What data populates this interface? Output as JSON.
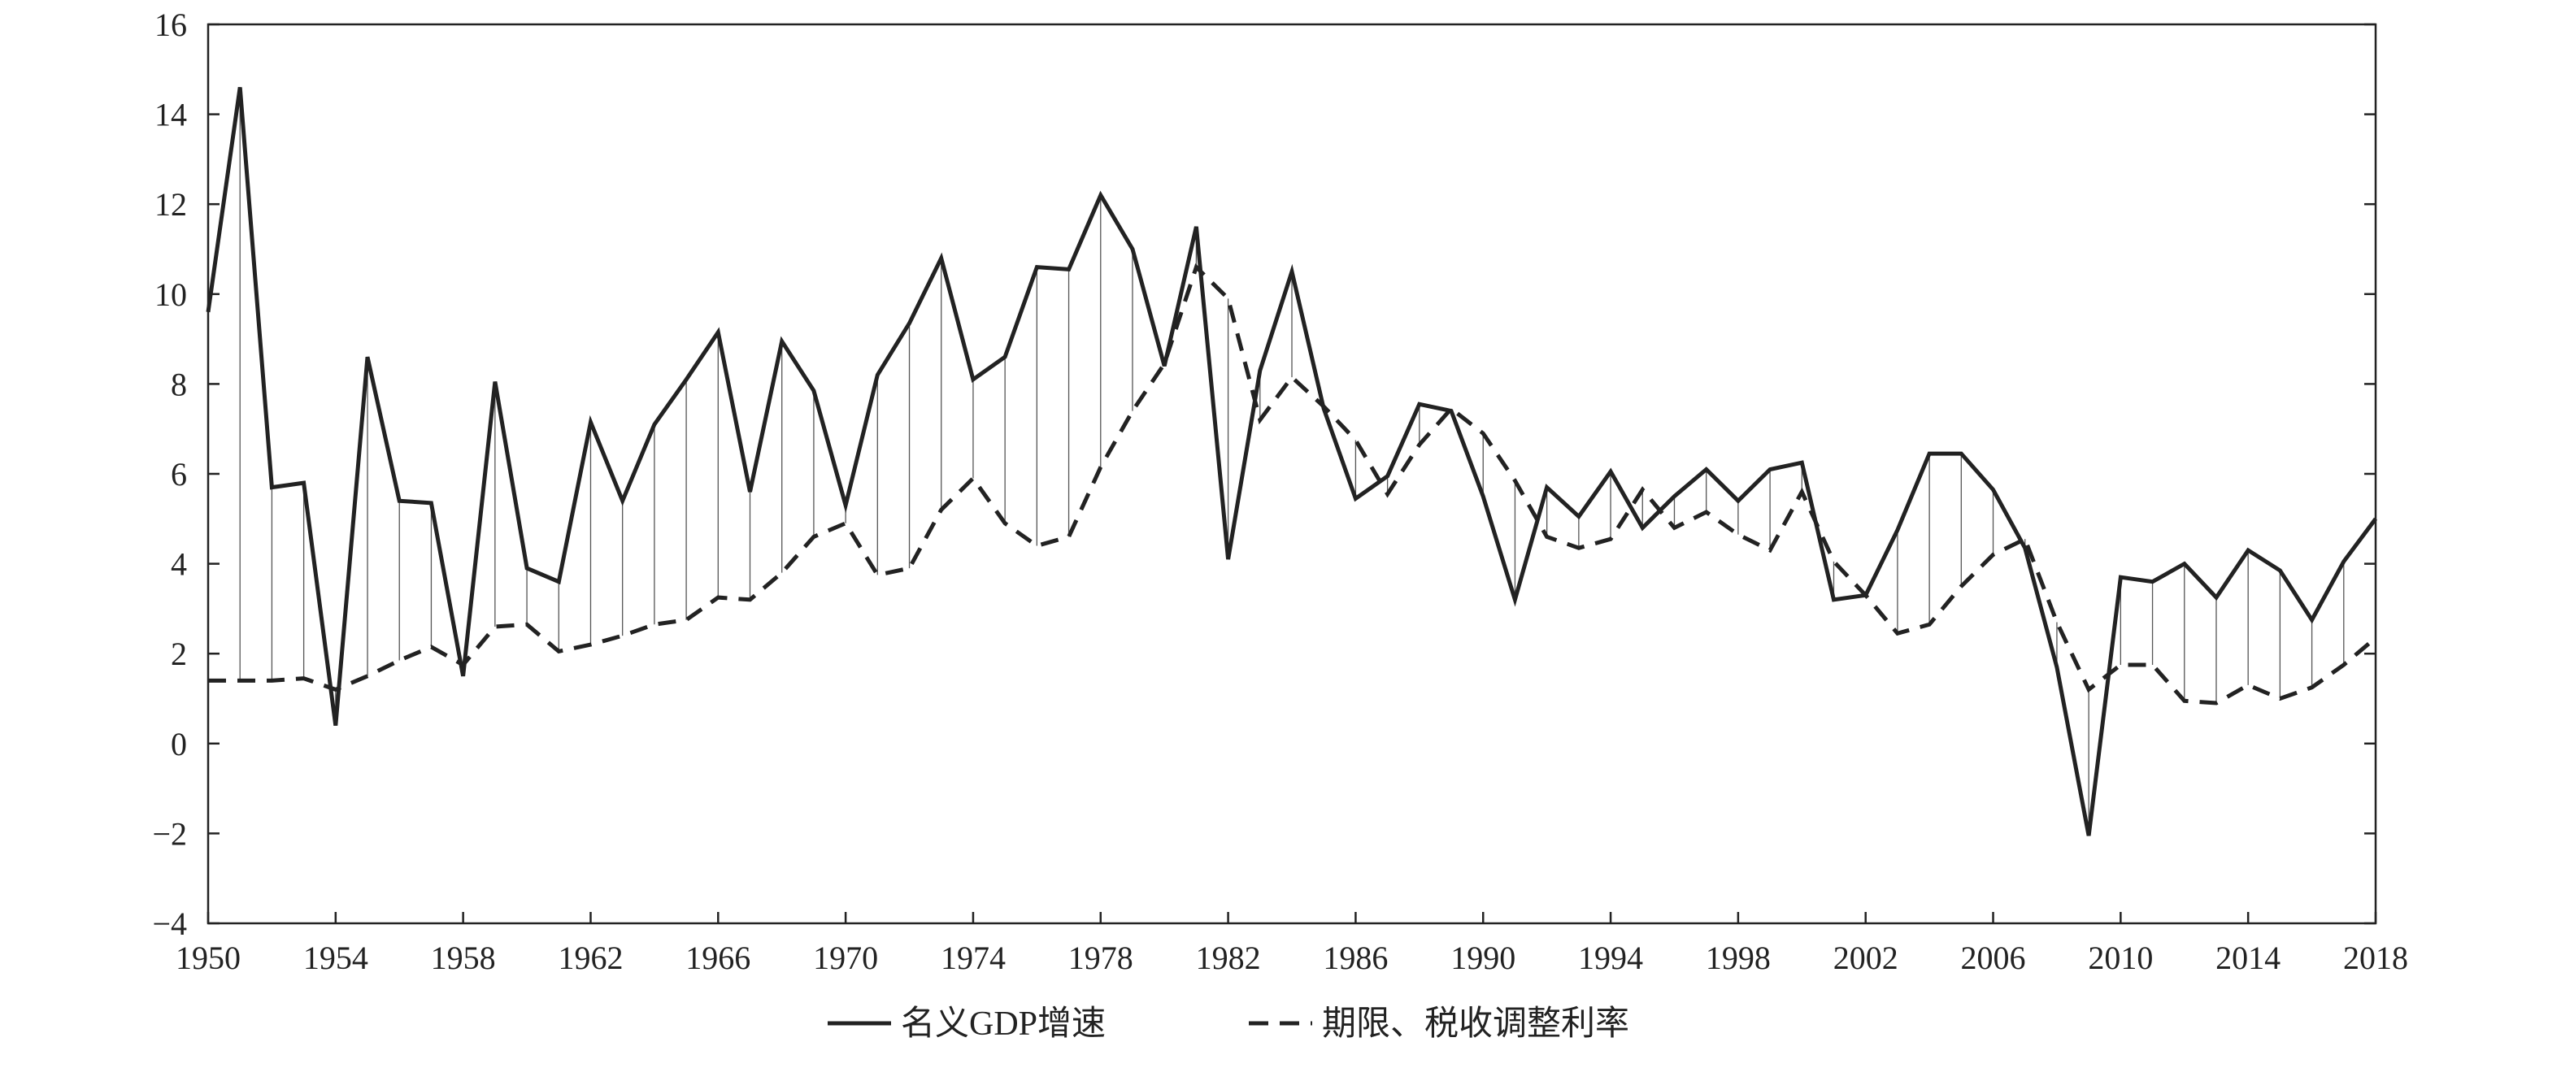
{
  "chart_data": {
    "type": "line",
    "title": "",
    "xlabel": "",
    "ylabel": "",
    "xlim": [
      1950,
      2018
    ],
    "ylim": [
      -4,
      16
    ],
    "x_ticks": [
      1950,
      1954,
      1958,
      1962,
      1966,
      1970,
      1974,
      1978,
      1982,
      1986,
      1990,
      1994,
      1998,
      2002,
      2006,
      2010,
      2014,
      2018
    ],
    "y_ticks": [
      -4,
      -2,
      0,
      2,
      4,
      6,
      8,
      10,
      12,
      14,
      16
    ],
    "grid": false,
    "legend_position": "bottom-center",
    "colors": {
      "line": "#222222",
      "fill_lines": "#555555"
    },
    "x": [
      1950,
      1951,
      1952,
      1953,
      1954,
      1955,
      1956,
      1957,
      1958,
      1959,
      1960,
      1961,
      1962,
      1963,
      1964,
      1965,
      1966,
      1967,
      1968,
      1969,
      1970,
      1971,
      1972,
      1973,
      1974,
      1975,
      1976,
      1977,
      1978,
      1979,
      1980,
      1981,
      1982,
      1983,
      1984,
      1985,
      1986,
      1987,
      1988,
      1989,
      1990,
      1991,
      1992,
      1993,
      1994,
      1995,
      1996,
      1997,
      1998,
      1999,
      2000,
      2001,
      2002,
      2003,
      2004,
      2005,
      2006,
      2007,
      2008,
      2009,
      2010,
      2011,
      2012,
      2013,
      2014,
      2015,
      2016,
      2017,
      2018
    ],
    "series": [
      {
        "name": "名义GDP增速",
        "style": "solid",
        "values": [
          9.6,
          14.6,
          5.7,
          5.8,
          0.4,
          8.6,
          5.4,
          5.35,
          1.5,
          8.05,
          3.9,
          3.6,
          7.15,
          5.4,
          7.1,
          8.1,
          9.15,
          5.6,
          8.95,
          7.85,
          5.3,
          8.2,
          9.35,
          10.8,
          8.1,
          8.6,
          10.6,
          10.55,
          12.2,
          11.0,
          8.4,
          11.5,
          4.1,
          8.3,
          10.5,
          7.45,
          5.45,
          5.95,
          7.55,
          7.4,
          5.5,
          3.2,
          5.7,
          5.05,
          6.05,
          4.8,
          5.5,
          6.1,
          5.4,
          6.1,
          6.25,
          3.2,
          3.3,
          4.75,
          6.45,
          6.45,
          5.65,
          4.35,
          1.7,
          -2.05,
          3.7,
          3.6,
          4.0,
          3.25,
          4.3,
          3.85,
          2.75,
          4.05,
          5.0
        ]
      },
      {
        "name": "期限、税收调整利率",
        "style": "dashed",
        "values": [
          1.4,
          1.4,
          1.4,
          1.45,
          1.2,
          1.5,
          1.85,
          2.15,
          1.75,
          2.6,
          2.65,
          2.05,
          2.2,
          2.4,
          2.65,
          2.75,
          3.25,
          3.2,
          3.8,
          4.6,
          4.9,
          3.75,
          3.9,
          5.2,
          5.9,
          4.9,
          4.4,
          4.6,
          6.15,
          7.4,
          8.45,
          10.6,
          9.9,
          7.2,
          8.15,
          7.5,
          6.75,
          5.55,
          6.65,
          7.45,
          6.9,
          5.85,
          4.6,
          4.35,
          4.55,
          5.65,
          4.8,
          5.15,
          4.65,
          4.3,
          5.6,
          4.05,
          3.3,
          2.45,
          2.65,
          3.5,
          4.2,
          4.55,
          2.7,
          1.2,
          1.75,
          1.75,
          0.95,
          0.9,
          1.3,
          1.0,
          1.25,
          1.75,
          2.35
        ]
      }
    ]
  }
}
